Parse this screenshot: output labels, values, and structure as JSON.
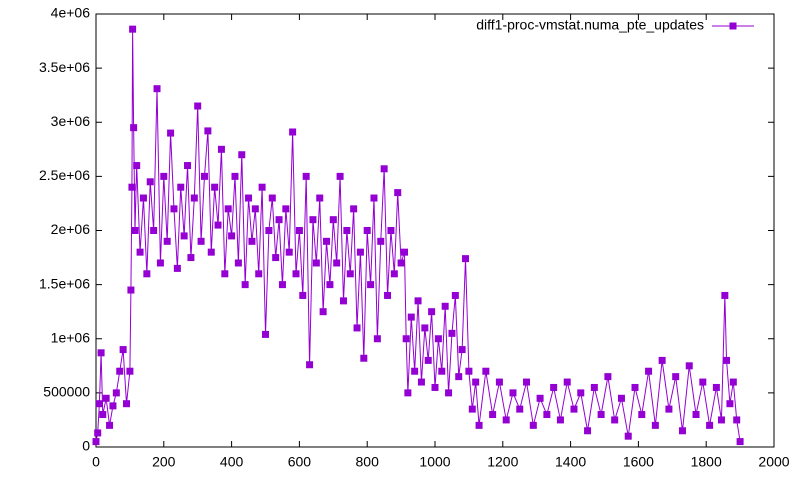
{
  "chart_data": {
    "type": "line",
    "x": [
      0,
      5,
      10,
      15,
      20,
      30,
      40,
      50,
      60,
      70,
      80,
      90,
      100,
      103,
      106,
      108,
      111,
      115,
      120,
      130,
      140,
      150,
      160,
      170,
      180,
      190,
      200,
      210,
      220,
      230,
      240,
      250,
      260,
      270,
      280,
      290,
      300,
      310,
      320,
      330,
      340,
      350,
      360,
      370,
      380,
      390,
      400,
      410,
      420,
      430,
      440,
      450,
      460,
      470,
      480,
      490,
      500,
      510,
      520,
      530,
      540,
      550,
      560,
      570,
      580,
      590,
      600,
      610,
      620,
      630,
      640,
      650,
      660,
      670,
      680,
      690,
      700,
      710,
      720,
      730,
      740,
      750,
      760,
      770,
      780,
      790,
      800,
      810,
      820,
      830,
      840,
      850,
      860,
      870,
      880,
      890,
      900,
      910,
      915,
      920,
      930,
      940,
      950,
      960,
      970,
      980,
      990,
      1000,
      1010,
      1020,
      1030,
      1040,
      1050,
      1060,
      1070,
      1080,
      1090,
      1100,
      1110,
      1120,
      1130,
      1150,
      1170,
      1190,
      1210,
      1230,
      1250,
      1270,
      1290,
      1310,
      1330,
      1350,
      1370,
      1390,
      1410,
      1430,
      1450,
      1470,
      1490,
      1510,
      1530,
      1550,
      1570,
      1590,
      1610,
      1630,
      1650,
      1670,
      1690,
      1710,
      1730,
      1750,
      1770,
      1790,
      1810,
      1830,
      1845,
      1855,
      1860,
      1870,
      1880,
      1890,
      1900
    ],
    "series": [
      {
        "name": "diff1-proc-vmstat.numa_pte_updates",
        "color": "#9400d3",
        "values": [
          50000,
          130000,
          400000,
          870000,
          300000,
          450000,
          200000,
          380000,
          500000,
          700000,
          900000,
          400000,
          700000,
          1450000,
          2400000,
          3860000,
          2950000,
          2000000,
          2600000,
          1800000,
          2300000,
          1600000,
          2450000,
          2000000,
          3310000,
          1700000,
          2500000,
          1900000,
          2900000,
          2200000,
          1650000,
          2400000,
          1950000,
          2600000,
          1750000,
          2300000,
          3150000,
          1900000,
          2500000,
          2920000,
          1800000,
          2400000,
          2050000,
          2750000,
          1600000,
          2200000,
          1950000,
          2500000,
          1700000,
          2700000,
          1500000,
          2300000,
          1900000,
          2200000,
          1600000,
          2400000,
          1040000,
          2000000,
          2300000,
          1750000,
          2100000,
          1500000,
          2200000,
          1800000,
          2910000,
          1600000,
          2000000,
          1400000,
          2500000,
          760000,
          2100000,
          1700000,
          2300000,
          1250000,
          1900000,
          1500000,
          2100000,
          1700000,
          2500000,
          1350000,
          2000000,
          1600000,
          2200000,
          1100000,
          1800000,
          820000,
          2000000,
          1500000,
          2300000,
          1000000,
          1900000,
          2570000,
          1400000,
          2000000,
          1600000,
          2350000,
          1700000,
          1800000,
          1000000,
          500000,
          1200000,
          700000,
          1350000,
          600000,
          1100000,
          800000,
          1250000,
          550000,
          1000000,
          700000,
          1300000,
          500000,
          1050000,
          1400000,
          650000,
          900000,
          1740000,
          700000,
          350000,
          600000,
          200000,
          700000,
          300000,
          600000,
          250000,
          500000,
          350000,
          600000,
          200000,
          450000,
          300000,
          550000,
          250000,
          600000,
          350000,
          500000,
          150000,
          550000,
          300000,
          650000,
          250000,
          450000,
          100000,
          550000,
          300000,
          700000,
          200000,
          800000,
          350000,
          650000,
          150000,
          750000,
          300000,
          600000,
          200000,
          550000,
          250000,
          1400000,
          800000,
          400000,
          600000,
          250000,
          50000
        ]
      }
    ],
    "xlim": [
      0,
      2000
    ],
    "xticks": [
      0,
      200,
      400,
      600,
      800,
      1000,
      1200,
      1400,
      1600,
      1800,
      2000
    ],
    "ylim": [
      0,
      4000000
    ],
    "yticks": [
      0,
      500000,
      {
        "value": 1000000,
        "label": "1e+06"
      },
      {
        "value": 1500000,
        "label": "1.5e+06"
      },
      {
        "value": 2000000,
        "label": "2e+06"
      },
      {
        "value": 2500000,
        "label": "2.5e+06"
      },
      {
        "value": 3000000,
        "label": "3e+06"
      },
      {
        "value": 3500000,
        "label": "3.5e+06"
      },
      {
        "value": 4000000,
        "label": "4e+06"
      }
    ],
    "legend": "top-right"
  }
}
